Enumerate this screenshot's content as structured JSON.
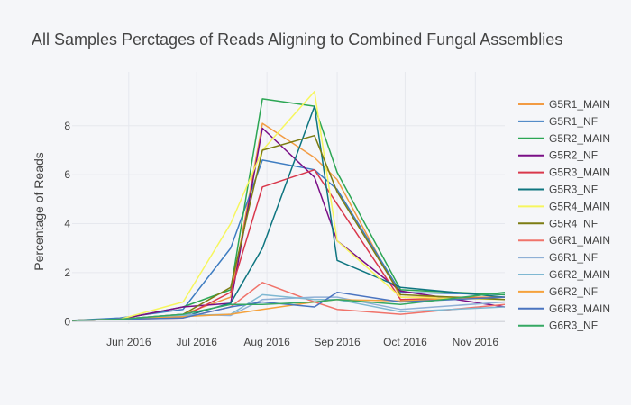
{
  "chart_data": {
    "type": "line",
    "title": "All Samples Perctages of Reads Aligning to Combined Fungal Assemblies",
    "xlabel": "",
    "ylabel": "Percentage of Reads",
    "x_ticks": [
      "Jun 2016",
      "Jul 2016",
      "Aug 2016",
      "Sep 2016",
      "Oct 2016",
      "Nov 2016"
    ],
    "x_tick_dates": [
      "2016-06-01",
      "2016-07-01",
      "2016-08-01",
      "2016-09-01",
      "2016-10-01",
      "2016-11-01"
    ],
    "y_ticks": [
      0,
      2,
      4,
      6,
      8
    ],
    "xlim": [
      "2016-05-07",
      "2016-11-14"
    ],
    "ylim": [
      -0.1,
      10.2
    ],
    "grid": true,
    "legend_position": "right",
    "x": [
      "2016-05-07",
      "2016-05-28",
      "2016-06-25",
      "2016-07-16",
      "2016-07-30",
      "2016-08-22",
      "2016-09-01",
      "2016-09-29",
      "2016-11-14"
    ],
    "series": [
      {
        "name": "G5R1_MAIN",
        "color": "#f29b43",
        "values": [
          0.05,
          0.1,
          0.3,
          1.0,
          8.1,
          6.7,
          5.8,
          1.0,
          1.0
        ]
      },
      {
        "name": "G5R1_NF",
        "color": "#3d7cc1",
        "values": [
          0.05,
          0.15,
          0.5,
          3.0,
          6.6,
          6.2,
          5.4,
          1.2,
          1.1
        ]
      },
      {
        "name": "G5R2_MAIN",
        "color": "#2ca654",
        "values": [
          0.05,
          0.1,
          0.6,
          1.3,
          9.1,
          8.8,
          6.1,
          1.3,
          1.1
        ]
      },
      {
        "name": "G5R2_NF",
        "color": "#7a0e86",
        "values": [
          0.05,
          0.1,
          0.6,
          0.75,
          7.9,
          5.9,
          3.3,
          1.25,
          0.6
        ]
      },
      {
        "name": "G5R3_MAIN",
        "color": "#d9384c",
        "values": [
          0.05,
          0.1,
          0.2,
          1.2,
          5.5,
          6.2,
          4.8,
          0.9,
          1.0
        ]
      },
      {
        "name": "G5R3_NF",
        "color": "#0e7580",
        "values": [
          0.05,
          0.1,
          0.2,
          0.75,
          3.0,
          8.8,
          2.5,
          1.4,
          1.0
        ]
      },
      {
        "name": "G5R4_MAIN",
        "color": "#f6f65e",
        "values": [
          0.05,
          0.1,
          0.8,
          4.0,
          7.0,
          9.4,
          3.3,
          1.0,
          0.9
        ]
      },
      {
        "name": "G5R4_NF",
        "color": "#7c7c12",
        "values": [
          0.05,
          0.1,
          0.3,
          1.4,
          7.0,
          7.6,
          5.3,
          1.1,
          0.9
        ]
      },
      {
        "name": "G6R1_MAIN",
        "color": "#f0736a",
        "values": [
          0.05,
          0.1,
          0.15,
          0.6,
          1.6,
          0.8,
          0.5,
          0.3,
          0.7
        ]
      },
      {
        "name": "G6R1_NF",
        "color": "#8fb0d6",
        "values": [
          0.05,
          0.1,
          0.3,
          0.25,
          0.9,
          1.0,
          1.0,
          0.5,
          0.8
        ]
      },
      {
        "name": "G6R2_MAIN",
        "color": "#7fb8d2",
        "values": [
          0.05,
          0.1,
          0.25,
          0.3,
          1.1,
          0.9,
          0.9,
          0.4,
          0.6
        ]
      },
      {
        "name": "G6R2_NF",
        "color": "#f5a23c",
        "values": [
          0.05,
          0.1,
          0.2,
          0.3,
          0.5,
          0.8,
          0.9,
          0.85,
          1.0
        ]
      },
      {
        "name": "G6R3_MAIN",
        "color": "#4a74c0",
        "values": [
          0.05,
          0.1,
          0.15,
          0.6,
          0.8,
          0.6,
          1.2,
          0.8,
          1.0
        ]
      },
      {
        "name": "G6R3_NF",
        "color": "#35a863",
        "values": [
          0.05,
          0.1,
          0.3,
          0.7,
          0.7,
          0.8,
          0.9,
          0.7,
          1.2
        ]
      }
    ]
  }
}
